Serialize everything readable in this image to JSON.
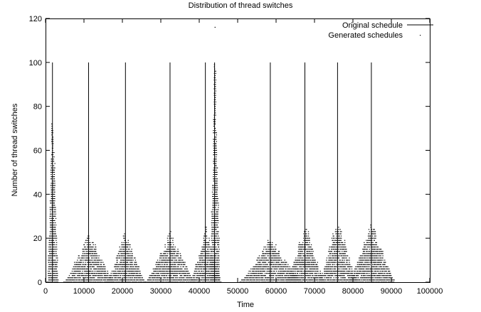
{
  "chart_data": {
    "type": "scatter",
    "title": "Distribution of thread switches",
    "xlabel": "Time",
    "ylabel": "Number of thread switches",
    "xlim": [
      0,
      100000
    ],
    "ylim": [
      0,
      120
    ],
    "x_ticks": [
      0,
      10000,
      20000,
      30000,
      40000,
      50000,
      60000,
      70000,
      80000,
      90000,
      100000
    ],
    "y_ticks": [
      0,
      20,
      40,
      60,
      80,
      100,
      120
    ],
    "legend_position": "top-right",
    "grid": false,
    "series": [
      {
        "name": "Original schedule",
        "style": "impulses",
        "x": [
          1800,
          11200,
          20800,
          32400,
          41600,
          44000,
          58500,
          67500,
          76000,
          84800
        ],
        "y": [
          100,
          100,
          100,
          100,
          100,
          100,
          100,
          100,
          100,
          100
        ]
      },
      {
        "name": "Generated schedules",
        "style": "dots",
        "clusters": [
          {
            "center": 1800,
            "peak": 84,
            "half_width": 1400
          },
          {
            "center": 11200,
            "peak": 21,
            "half_width": 6500
          },
          {
            "center": 20800,
            "peak": 22,
            "half_width": 5000
          },
          {
            "center": 32400,
            "peak": 21,
            "half_width": 6500
          },
          {
            "center": 41600,
            "peak": 24,
            "half_width": 4000
          },
          {
            "center": 44000,
            "peak": 101,
            "half_width": 1300
          },
          {
            "center": 58500,
            "peak": 19,
            "half_width": 8000
          },
          {
            "center": 67500,
            "peak": 25,
            "half_width": 5000
          },
          {
            "center": 76000,
            "peak": 28,
            "half_width": 5000
          },
          {
            "center": 84800,
            "peak": 26,
            "half_width": 6000
          }
        ],
        "outliers": [
          {
            "x": 44000,
            "y": 116
          }
        ]
      }
    ]
  }
}
